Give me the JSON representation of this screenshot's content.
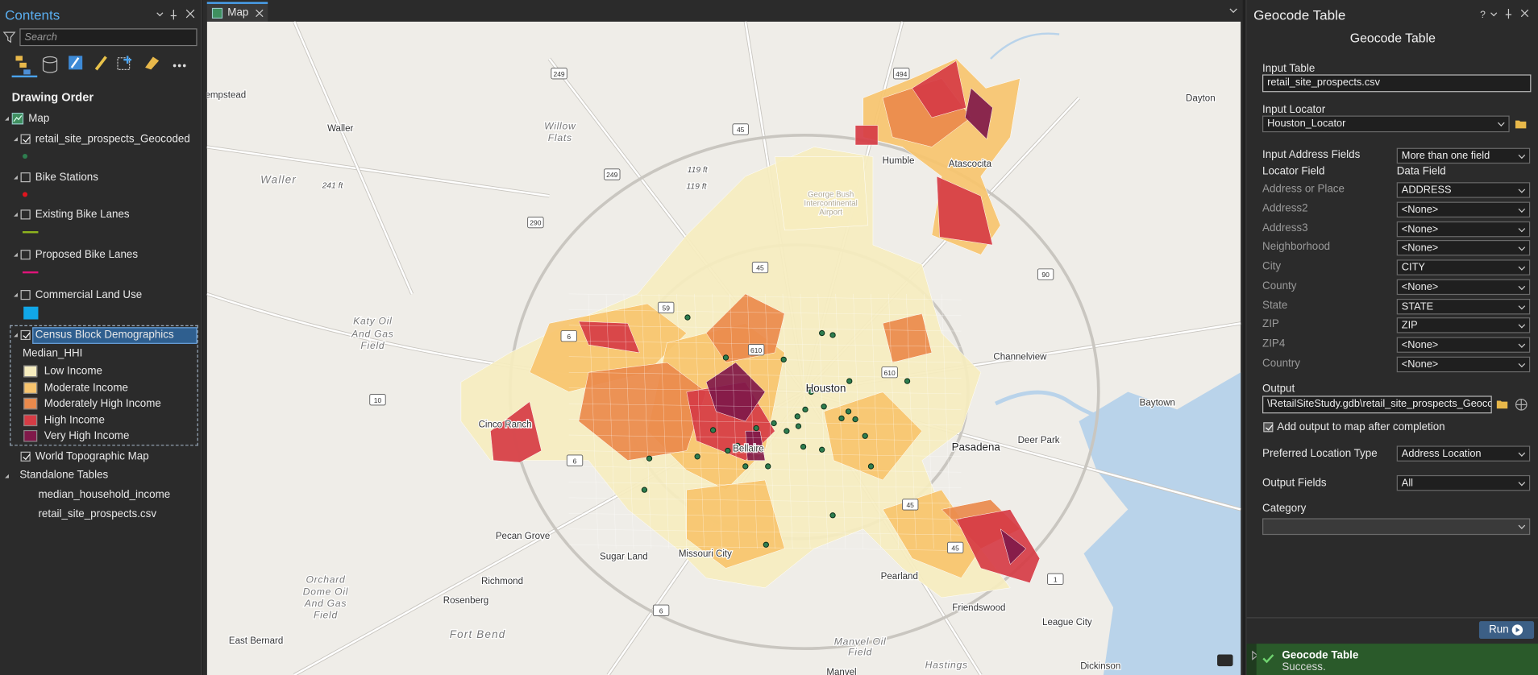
{
  "contents": {
    "title": "Contents",
    "search_placeholder": "Search",
    "drawing_order": "Drawing Order",
    "map": "Map",
    "layers": [
      {
        "name": "retail_site_prospects_Geocoded",
        "checked": true,
        "symbol": "point",
        "color": "#2e7d4f"
      },
      {
        "name": "Bike Stations",
        "checked": false,
        "symbol": "point",
        "color": "#e0141e"
      },
      {
        "name": "Existing Bike Lanes",
        "checked": false,
        "symbol": "line",
        "color": "#8fb41e"
      },
      {
        "name": "Proposed Bike Lanes",
        "checked": false,
        "symbol": "line",
        "color": "#e0147a"
      },
      {
        "name": "Commercial Land Use",
        "checked": false,
        "symbol": "fill",
        "color": "#11a7e8"
      }
    ],
    "census": {
      "name": "Census Block Demographics",
      "checked": true,
      "field": "Median_HHI",
      "classes": [
        {
          "label": "Low Income",
          "color": "#f6edbf"
        },
        {
          "label": "Moderate Income",
          "color": "#f7c46e"
        },
        {
          "label": "Moderately High Income",
          "color": "#ea8a4c"
        },
        {
          "label": "High Income",
          "color": "#d63c45"
        },
        {
          "label": "Very High Income",
          "color": "#80194a"
        }
      ]
    },
    "basemap": {
      "name": "World Topographic Map",
      "checked": true
    },
    "standalone": "Standalone Tables",
    "tables": [
      "median_household_income",
      "retail_site_prospects.csv"
    ]
  },
  "map": {
    "tab": "Map",
    "labels": [
      "empstead",
      "Waller",
      "Willow",
      "Flats",
      "Waller",
      "241 ft",
      "119 ft",
      "119 ft",
      "Humble",
      "Atascocita",
      "Dayton",
      "Katy Oil",
      "And Gas",
      "Field",
      "Houston",
      "Channelview",
      "Baytown",
      "Cinco Ranch",
      "Bellaire",
      "Pasadena",
      "Deer Park",
      "Pecan Grove",
      "Sugar Land",
      "Missouri City",
      "Richmond",
      "Rosenberg",
      "Orchard",
      "Dome Oil",
      "And Gas",
      "Field",
      "Fort Bend",
      "Pearland",
      "Friendswood",
      "League City",
      "East Bernard",
      "Manvel Oil",
      "Field",
      "Manvel",
      "Hastings",
      "Dickinson",
      "George Bush",
      "Intercontinental",
      "Airport"
    ],
    "shields": [
      "249",
      "494",
      "45",
      "249",
      "290",
      "45",
      "90",
      "6",
      "10",
      "59",
      "610",
      "610",
      "6",
      "45",
      "45",
      "6",
      "1"
    ]
  },
  "geocode": {
    "pane_title": "Geocode Table",
    "tool_title": "Geocode Table",
    "input_table_label": "Input Table",
    "input_table": "retail_site_prospects.csv",
    "input_locator_label": "Input Locator",
    "input_locator": "Houston_Locator",
    "input_address_fields_label": "Input Address Fields",
    "input_address_fields": "More than one field",
    "locator_field_header": "Locator Field",
    "data_field_header": "Data Field",
    "field_map": [
      {
        "field": "Address or Place",
        "value": "ADDRESS"
      },
      {
        "field": "Address2",
        "value": "<None>"
      },
      {
        "field": "Address3",
        "value": "<None>"
      },
      {
        "field": "Neighborhood",
        "value": "<None>"
      },
      {
        "field": "City",
        "value": "CITY"
      },
      {
        "field": "County",
        "value": "<None>"
      },
      {
        "field": "State",
        "value": "STATE"
      },
      {
        "field": "ZIP",
        "value": "ZIP"
      },
      {
        "field": "ZIP4",
        "value": "<None>"
      },
      {
        "field": "Country",
        "value": "<None>"
      }
    ],
    "output_label": "Output",
    "output": "\\RetailSiteStudy.gdb\\retail_site_prospects_Geocoded",
    "add_output": "Add output to map after completion",
    "preferred_label": "Preferred Location Type",
    "preferred": "Address Location",
    "output_fields_label": "Output Fields",
    "output_fields": "All",
    "category_label": "Category",
    "run": "Run",
    "status_title": "Geocode Table",
    "status": "Success."
  }
}
